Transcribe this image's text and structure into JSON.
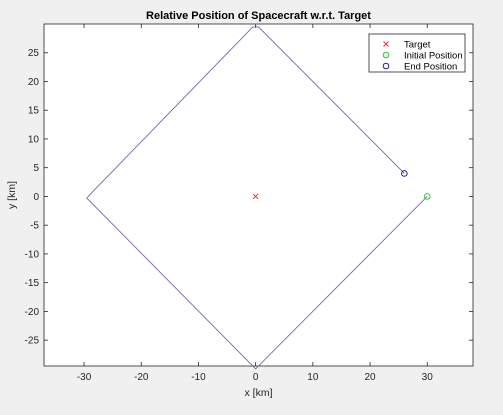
{
  "chart_data": {
    "type": "line",
    "title": "Relative Position of Spacecraft w.r.t. Target",
    "xlabel": "x [km]",
    "ylabel": "y [km]",
    "xlim": [
      -37,
      38
    ],
    "ylim": [
      -29.5,
      30
    ],
    "xticks": [
      -30,
      -20,
      -10,
      0,
      10,
      20,
      30
    ],
    "yticks": [
      -25,
      -20,
      -15,
      -10,
      -5,
      0,
      5,
      10,
      15,
      20,
      25
    ],
    "grid": false,
    "legend_position": "top-right",
    "series": [
      {
        "kind": "trajectory",
        "color": "#7e5fb0",
        "points": [
          [
            30,
            0
          ],
          [
            0,
            -30
          ],
          [
            -29.5,
            -0.3
          ],
          [
            -29,
            0.3
          ],
          [
            -0.5,
            29.5
          ],
          [
            0.5,
            29.5
          ],
          [
            26,
            4
          ]
        ]
      },
      {
        "kind": "marker",
        "name": "Target",
        "marker": "x",
        "color": "#ff2a2a",
        "points": [
          [
            0,
            0
          ]
        ]
      },
      {
        "kind": "marker",
        "name": "Initial Position",
        "marker": "o",
        "color": "#1fd11f",
        "points": [
          [
            30,
            0
          ]
        ]
      },
      {
        "kind": "marker",
        "name": "End Position",
        "marker": "o",
        "color": "#1f1f9e",
        "points": [
          [
            26,
            4
          ]
        ]
      }
    ]
  }
}
